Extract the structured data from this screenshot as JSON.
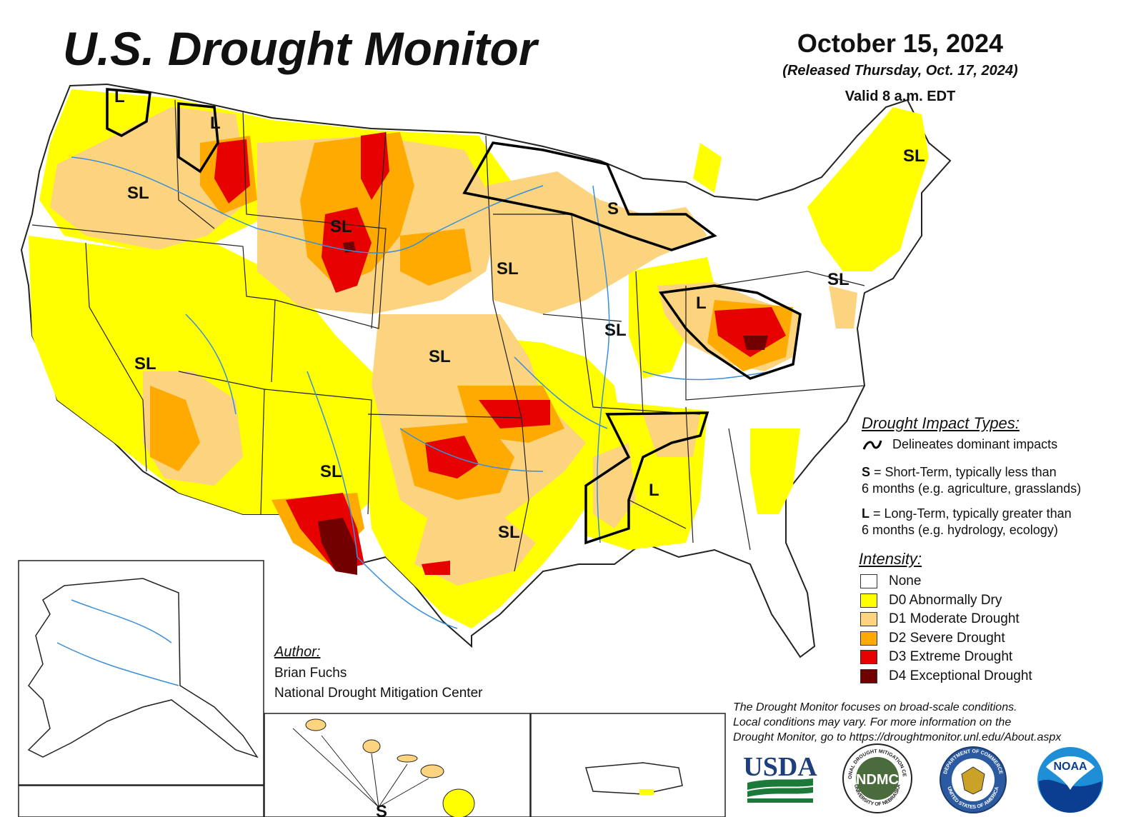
{
  "title": "U.S. Drought Monitor",
  "date": "October 15, 2024",
  "released": "(Released Thursday, Oct. 17, 2024)",
  "valid": "Valid 8 a.m. EDT",
  "map_labels": {
    "wa_l": "L",
    "id_l": "L",
    "or_sl": "SL",
    "wy_sl": "SL",
    "mn_s": "S",
    "ne_sl": "SL",
    "nv_sl": "SL",
    "ks_sl": "SL",
    "il_sl": "SL",
    "oh_l": "L",
    "nm_sl": "SL",
    "tx_sl": "SL",
    "ms_l": "L",
    "me_sl": "SL",
    "pa_sl": "SL",
    "hi_s": "S"
  },
  "legend": {
    "impact_heading": "Drought Impact Types:",
    "delineates": "Delineates dominant impacts",
    "short_term_key": "S",
    "short_term_text": " = Short-Term, typically less than",
    "short_term_text2": "6 months (e.g. agriculture, grasslands)",
    "long_term_key": "L",
    "long_term_text": " = Long-Term, typically greater than",
    "long_term_text2": "6 months (e.g. hydrology, ecology)",
    "intensity_heading": "Intensity:",
    "categories": [
      {
        "label": "None",
        "color": "#ffffff"
      },
      {
        "label": "D0 Abnormally Dry",
        "color": "#ffff00"
      },
      {
        "label": "D1 Moderate Drought",
        "color": "#fcd37f"
      },
      {
        "label": "D2 Severe Drought",
        "color": "#ffaa00"
      },
      {
        "label": "D3 Extreme Drought",
        "color": "#e60000"
      },
      {
        "label": "D4 Exceptional Drought",
        "color": "#730000"
      }
    ]
  },
  "author": {
    "heading": "Author:",
    "name": "Brian Fuchs",
    "org": "National Drought Mitigation Center"
  },
  "disclaimer": {
    "line1": "The Drought Monitor focuses on broad-scale conditions.",
    "line2": "Local conditions may vary. For more information on the",
    "line3": "Drought Monitor, go to https://droughtmonitor.unl.edu/About.aspx"
  },
  "logos": {
    "usda": "USDA",
    "ndmc": "NDMC",
    "ndmc_ring": "NATIONAL DROUGHT MITIGATION CENTER",
    "ndmc_bottom": "UNIVERSITY OF NEBRASKA",
    "doc_ring": "DEPARTMENT OF COMMERCE",
    "doc_bottom": "UNITED STATES OF AMERICA",
    "noaa": "NOAA"
  }
}
